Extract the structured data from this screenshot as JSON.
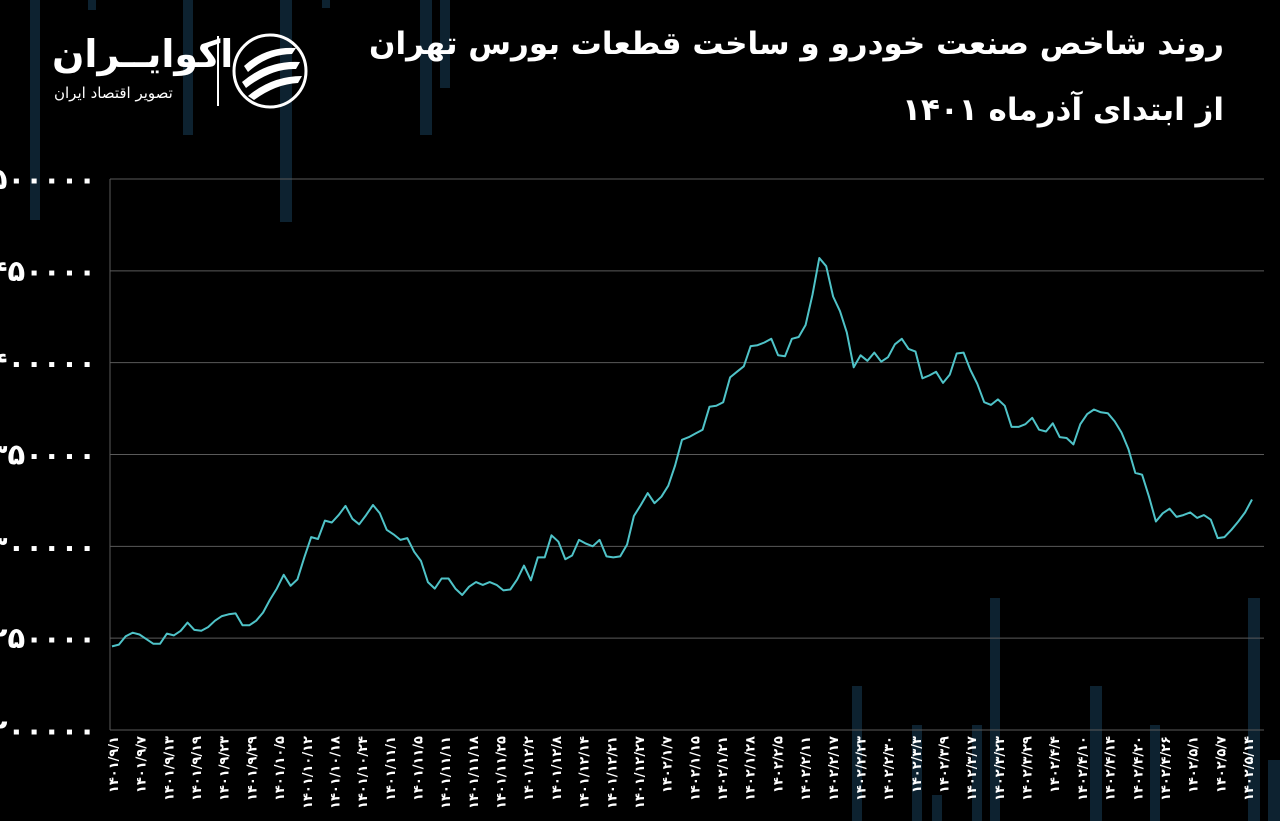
{
  "header": {
    "title_line1": "روند شاخص صنعت خودرو و ساخت قطعات بورس تهران",
    "title_line2": "از ابتدای آذرماه ۱۴۰۱"
  },
  "brand": {
    "name": "اکوایــران",
    "tagline": "تصویر اقتصاد ایران",
    "logo_icon": "ecoiran-swoosh-icon"
  },
  "colors": {
    "background": "#000000",
    "line": "#4fc3c8",
    "grid": "#5a5a5a",
    "text": "#ffffff",
    "deco": "#0d2230"
  },
  "chart_data": {
    "type": "line",
    "title": "روند شاخص صنعت خودرو و ساخت قطعات بورس تهران از ابتدای آذرماه ۱۴۰۱",
    "xlabel": "",
    "ylabel": "",
    "ylim": [
      200000,
      500000
    ],
    "yticks": [
      200000,
      250000,
      300000,
      350000,
      400000,
      450000,
      500000
    ],
    "ytick_labels": [
      "۲۰۰۰۰۰",
      "۲۵۰۰۰۰",
      "۳۰۰۰۰۰",
      "۳۵۰۰۰۰",
      "۴۰۰۰۰۰",
      "۴۵۰۰۰۰",
      "۵۰۰۰۰۰"
    ],
    "grid": true,
    "legend": "none",
    "xtick_labels": [
      "۱۴۰۱/۹/۱",
      "۱۴۰۱/۹/۷",
      "۱۴۰۱/۹/۱۳",
      "۱۴۰۱/۹/۱۹",
      "۱۴۰۱/۹/۲۳",
      "۱۴۰۱/۹/۲۹",
      "۱۴۰۱/۱۰/۵",
      "۱۴۰۱/۱۰/۱۲",
      "۱۴۰۱/۱۰/۱۸",
      "۱۴۰۱/۱۰/۲۴",
      "۱۴۰۱/۱۱/۱",
      "۱۴۰۱/۱۱/۵",
      "۱۴۰۱/۱۱/۱۱",
      "۱۴۰۱/۱۱/۱۸",
      "۱۴۰۱/۱۱/۲۵",
      "۱۴۰۱/۱۲/۲",
      "۱۴۰۱/۱۲/۸",
      "۱۴۰۱/۱۲/۱۴",
      "۱۴۰۱/۱۲/۲۱",
      "۱۴۰۱/۱۲/۲۷",
      "۱۴۰۲/۱/۷",
      "۱۴۰۲/۱/۱۵",
      "۱۴۰۲/۱/۲۱",
      "۱۴۰۲/۱/۲۸",
      "۱۴۰۲/۲/۵",
      "۱۴۰۲/۲/۱۱",
      "۱۴۰۲/۲/۱۷",
      "۱۴۰۲/۲/۲۳",
      "۱۴۰۲/۲/۳۰",
      "۱۴۰۲/۳/۳",
      "۱۴۰۲/۳/۹",
      "۱۴۰۲/۳/۱۷",
      "۱۴۰۲/۳/۲۳",
      "۱۴۰۲/۳/۲۹",
      "۱۴۰۲/۴/۴",
      "۱۴۰۲/۴/۱۰",
      "۱۴۰۲/۴/۱۴",
      "۱۴۰۲/۴/۲۰",
      "۱۴۰۲/۴/۲۶",
      "۱۴۰۲/۵/۱",
      "۱۴۰۲/۵/۷",
      "۱۴۰۲/۵/۱۴"
    ],
    "series": [
      {
        "values": [
          245500,
          246500,
          251000,
          253000,
          252000,
          249500,
          247000,
          247000,
          252500,
          251500,
          254000,
          258500,
          254500,
          254000,
          256000,
          259500,
          262000,
          263000,
          263500,
          257000,
          257000,
          259500,
          264000,
          271000,
          277000,
          284500,
          278500,
          282000,
          294000,
          305000,
          304000,
          314000,
          313000,
          317000,
          322000,
          315000,
          312000,
          317000,
          322500,
          318000,
          309000,
          306500,
          303500,
          304500,
          297000,
          292000,
          280500,
          277000,
          282500,
          282500,
          277000,
          273500,
          278000,
          280500,
          279000,
          280500,
          279000,
          276000,
          276500,
          282000,
          289500,
          281500,
          294000,
          294000,
          306000,
          302500,
          293000,
          295000,
          303500,
          301500,
          300000,
          303500,
          294500,
          294000,
          294500,
          301000,
          316500,
          322500,
          329000,
          323500,
          327000,
          333000,
          344000,
          358000,
          359500,
          361500,
          363500,
          376000,
          376500,
          378500,
          392000,
          395000,
          398000,
          409000,
          409500,
          411000,
          413000,
          404000,
          403500,
          413000,
          414000,
          420500,
          437000,
          457000,
          452500,
          436000,
          428000,
          416500,
          397500,
          404000,
          401000,
          405500,
          400500,
          403000,
          410000,
          413000,
          407500,
          406000,
          391500,
          393000,
          395000,
          389000,
          393500,
          405000,
          405500,
          396000,
          388500,
          378500,
          377000,
          380000,
          376500,
          365000,
          365000,
          366500,
          370000,
          363500,
          362500,
          367000,
          359500,
          359000,
          355500,
          366500,
          372000,
          374500,
          373000,
          372500,
          368000,
          362000,
          353000,
          340000,
          339000,
          327000,
          313500,
          318000,
          320500,
          316000,
          317000,
          318500,
          315500,
          317000,
          314500,
          304500,
          305000,
          309000,
          313500,
          318500,
          325500
        ]
      }
    ]
  }
}
